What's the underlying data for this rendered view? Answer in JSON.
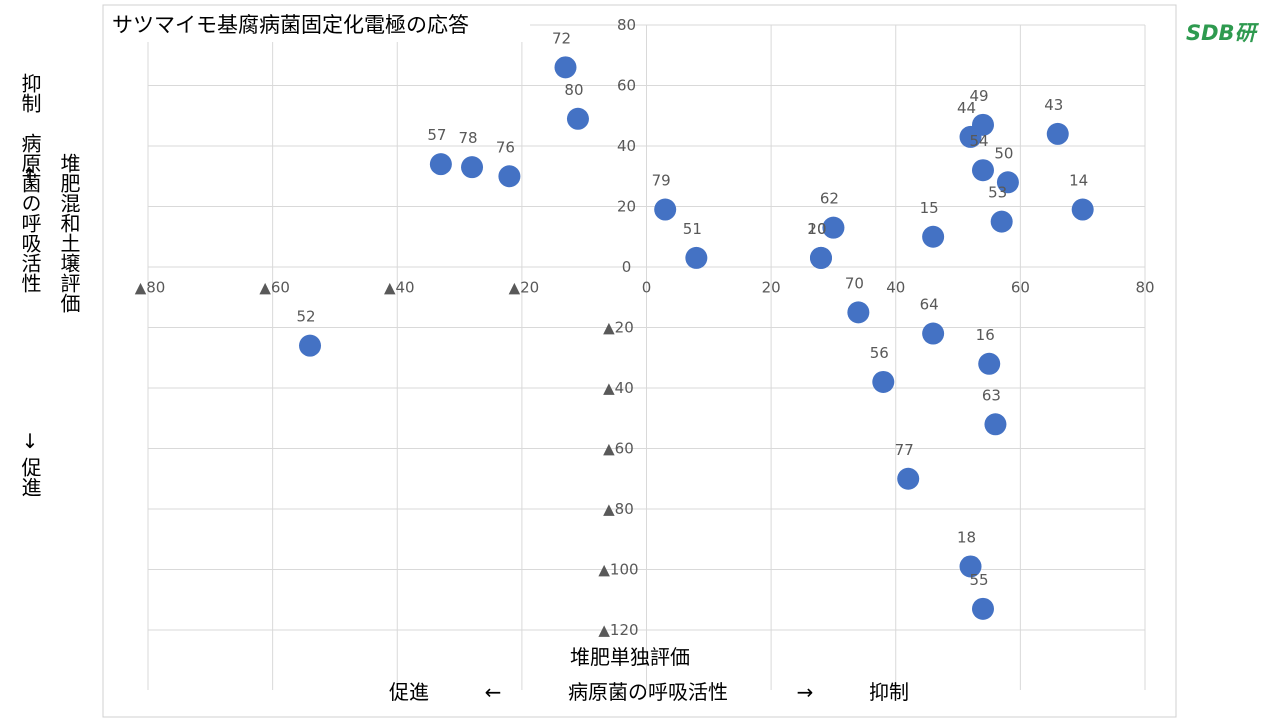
{
  "brand": "SDB研",
  "left_vertical_text": {
    "inner": "堆肥混和土壌評価",
    "top": "抑制",
    "up_arrow": "↑",
    "middle": "病原菌の呼吸活性",
    "down_arrow": "↓",
    "bottom": "促進"
  },
  "bottom_text": {
    "x_label": "堆肥単独評価",
    "left": "促進",
    "left_arrow": "←",
    "middle": "病原菌の呼吸活性",
    "right_arrow": "→",
    "right": "抑制"
  },
  "chart_data": {
    "type": "scatter",
    "title": "サツマイモ基腐病菌固定化電極の応答",
    "xlim": [
      -80,
      80
    ],
    "ylim": [
      -120,
      80
    ],
    "grid": true,
    "x_ticks_positive": [
      {
        "value": 0,
        "label": "0"
      },
      {
        "value": 20,
        "label": "20"
      },
      {
        "value": 40,
        "label": "40"
      },
      {
        "value": 60,
        "label": "60"
      },
      {
        "value": 80,
        "label": "80"
      }
    ],
    "x_ticks_negative": [
      {
        "value": -80,
        "label": "▲80"
      },
      {
        "value": -60,
        "label": "▲60"
      },
      {
        "value": -40,
        "label": "▲40"
      },
      {
        "value": -20,
        "label": "▲20"
      }
    ],
    "y_ticks_positive": [
      {
        "value": 80,
        "label": "80"
      },
      {
        "value": 60,
        "label": "60"
      },
      {
        "value": 40,
        "label": "40"
      },
      {
        "value": 20,
        "label": "20"
      },
      {
        "value": 0,
        "label": "0"
      }
    ],
    "y_ticks_negative": [
      {
        "value": -20,
        "label": "▲20"
      },
      {
        "value": -40,
        "label": "▲40"
      },
      {
        "value": -60,
        "label": "▲60"
      },
      {
        "value": -80,
        "label": "▲80"
      },
      {
        "value": -100,
        "label": "▲100"
      },
      {
        "value": -120,
        "label": "▲120"
      }
    ],
    "points": [
      {
        "label": "72",
        "x": -13,
        "y": 66
      },
      {
        "label": "80",
        "x": -11,
        "y": 49
      },
      {
        "label": "57",
        "x": -33,
        "y": 34
      },
      {
        "label": "78",
        "x": -28,
        "y": 33
      },
      {
        "label": "76",
        "x": -22,
        "y": 30
      },
      {
        "label": "52",
        "x": -54,
        "y": -26
      },
      {
        "label": "79",
        "x": 3,
        "y": 19
      },
      {
        "label": "51",
        "x": 8,
        "y": 3
      },
      {
        "label": "62",
        "x": 30,
        "y": 13
      },
      {
        "label": "10",
        "x": 28,
        "y": 3
      },
      {
        "label": "20",
        "x": 28,
        "y": 3
      },
      {
        "label": "15",
        "x": 46,
        "y": 10
      },
      {
        "label": "44",
        "x": 52,
        "y": 43
      },
      {
        "label": "49",
        "x": 54,
        "y": 47
      },
      {
        "label": "54",
        "x": 54,
        "y": 32
      },
      {
        "label": "50",
        "x": 58,
        "y": 28
      },
      {
        "label": "53",
        "x": 57,
        "y": 15
      },
      {
        "label": "43",
        "x": 66,
        "y": 44
      },
      {
        "label": "14",
        "x": 70,
        "y": 19
      },
      {
        "label": "70",
        "x": 34,
        "y": -15
      },
      {
        "label": "64",
        "x": 46,
        "y": -22
      },
      {
        "label": "16",
        "x": 55,
        "y": -32
      },
      {
        "label": "56",
        "x": 38,
        "y": -38
      },
      {
        "label": "63",
        "x": 56,
        "y": -52
      },
      {
        "label": "77",
        "x": 42,
        "y": -70
      },
      {
        "label": "18",
        "x": 52,
        "y": -99
      },
      {
        "label": "55",
        "x": 54,
        "y": -113
      }
    ],
    "colors": {
      "marker": "#4472c4",
      "grid": "#d9d9d9",
      "tick": "#595959"
    }
  }
}
